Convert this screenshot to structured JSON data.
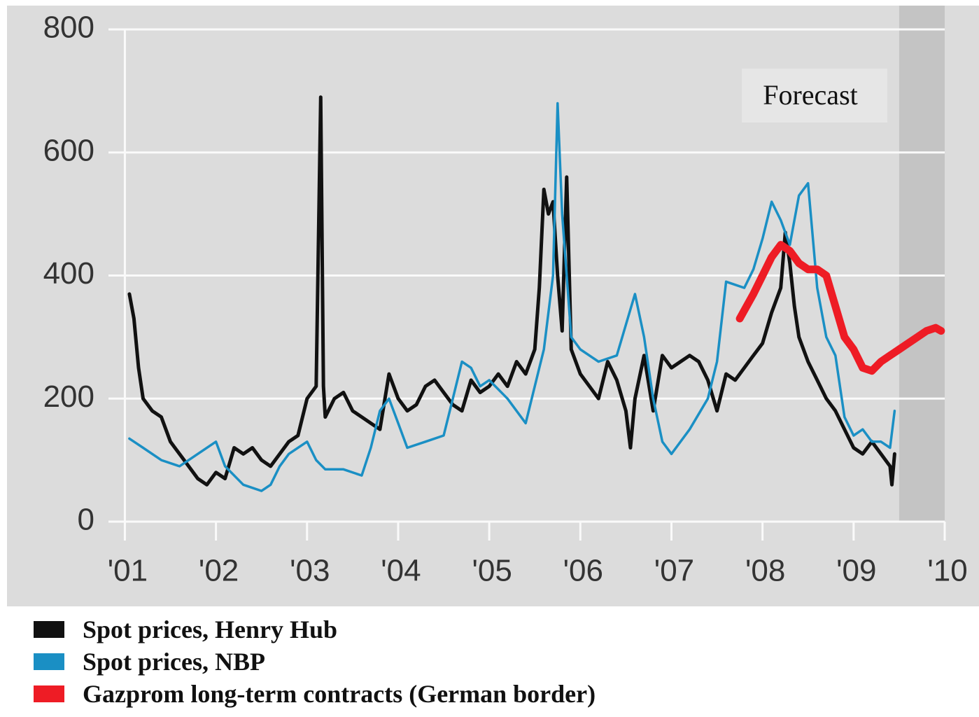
{
  "chart_data": {
    "type": "line",
    "annotation": "Forecast",
    "shaded_region": {
      "from": 2009.5,
      "to": 2010
    },
    "xlim": [
      2000.82,
      2010
    ],
    "xticks": [
      {
        "value": 2001,
        "label": "'01"
      },
      {
        "value": 2002,
        "label": "'02"
      },
      {
        "value": 2003,
        "label": "'03"
      },
      {
        "value": 2004,
        "label": "'04"
      },
      {
        "value": 2005,
        "label": "'05"
      },
      {
        "value": 2006,
        "label": "'06"
      },
      {
        "value": 2007,
        "label": "'07"
      },
      {
        "value": 2008,
        "label": "'08"
      },
      {
        "value": 2009,
        "label": "'09"
      },
      {
        "value": 2010,
        "label": "'10"
      }
    ],
    "ylim": [
      0,
      800
    ],
    "yticks": [
      0,
      200,
      400,
      600,
      800
    ],
    "grid": true,
    "series": [
      {
        "name": "Spot prices, Henry Hub",
        "color": "#111111",
        "x": [
          2001.05,
          2001.1,
          2001.15,
          2001.2,
          2001.3,
          2001.4,
          2001.5,
          2001.6,
          2001.7,
          2001.8,
          2001.9,
          2002.0,
          2002.1,
          2002.2,
          2002.3,
          2002.4,
          2002.5,
          2002.6,
          2002.7,
          2002.8,
          2002.9,
          2003.0,
          2003.1,
          2003.15,
          2003.18,
          2003.2,
          2003.3,
          2003.4,
          2003.5,
          2003.6,
          2003.7,
          2003.8,
          2003.9,
          2004.0,
          2004.1,
          2004.2,
          2004.3,
          2004.4,
          2004.5,
          2004.6,
          2004.7,
          2004.8,
          2004.9,
          2005.0,
          2005.1,
          2005.2,
          2005.3,
          2005.4,
          2005.5,
          2005.55,
          2005.6,
          2005.65,
          2005.7,
          2005.75,
          2005.8,
          2005.85,
          2005.9,
          2006.0,
          2006.1,
          2006.2,
          2006.3,
          2006.4,
          2006.5,
          2006.55,
          2006.6,
          2006.7,
          2006.8,
          2006.9,
          2007.0,
          2007.1,
          2007.2,
          2007.3,
          2007.4,
          2007.5,
          2007.6,
          2007.7,
          2007.8,
          2007.9,
          2008.0,
          2008.1,
          2008.2,
          2008.25,
          2008.3,
          2008.35,
          2008.4,
          2008.5,
          2008.6,
          2008.7,
          2008.8,
          2008.9,
          2009.0,
          2009.1,
          2009.2,
          2009.3,
          2009.4,
          2009.42,
          2009.45
        ],
        "values": [
          370,
          330,
          250,
          200,
          180,
          170,
          130,
          110,
          90,
          70,
          60,
          80,
          70,
          120,
          110,
          120,
          100,
          90,
          110,
          130,
          140,
          200,
          220,
          690,
          220,
          170,
          200,
          210,
          180,
          170,
          160,
          150,
          240,
          200,
          180,
          190,
          220,
          230,
          210,
          190,
          180,
          230,
          210,
          220,
          240,
          220,
          260,
          240,
          280,
          380,
          540,
          500,
          520,
          400,
          310,
          560,
          280,
          240,
          220,
          200,
          260,
          230,
          180,
          120,
          200,
          270,
          180,
          270,
          250,
          260,
          270,
          260,
          230,
          180,
          240,
          230,
          250,
          270,
          290,
          340,
          380,
          470,
          420,
          350,
          300,
          260,
          230,
          200,
          180,
          150,
          120,
          110,
          130,
          110,
          90,
          60,
          110
        ]
      },
      {
        "name": "Spot prices, NBP",
        "color": "#1a8fc4",
        "x": [
          2001.05,
          2001.2,
          2001.4,
          2001.6,
          2001.8,
          2002.0,
          2002.1,
          2002.3,
          2002.5,
          2002.6,
          2002.7,
          2002.8,
          2003.0,
          2003.1,
          2003.2,
          2003.4,
          2003.6,
          2003.7,
          2003.8,
          2003.9,
          2004.0,
          2004.1,
          2004.3,
          2004.5,
          2004.6,
          2004.7,
          2004.8,
          2004.9,
          2005.0,
          2005.2,
          2005.4,
          2005.5,
          2005.6,
          2005.7,
          2005.75,
          2005.8,
          2005.9,
          2006.0,
          2006.2,
          2006.4,
          2006.5,
          2006.6,
          2006.7,
          2006.8,
          2006.9,
          2007.0,
          2007.2,
          2007.4,
          2007.5,
          2007.6,
          2007.8,
          2007.9,
          2008.0,
          2008.1,
          2008.2,
          2008.3,
          2008.4,
          2008.5,
          2008.6,
          2008.7,
          2008.8,
          2008.9,
          2009.0,
          2009.1,
          2009.2,
          2009.3,
          2009.4,
          2009.45
        ],
        "values": [
          135,
          120,
          100,
          90,
          110,
          130,
          90,
          60,
          50,
          60,
          90,
          110,
          130,
          100,
          85,
          85,
          75,
          120,
          180,
          200,
          160,
          120,
          130,
          140,
          200,
          260,
          250,
          220,
          230,
          200,
          160,
          220,
          280,
          400,
          680,
          500,
          300,
          280,
          260,
          270,
          320,
          370,
          300,
          200,
          130,
          110,
          150,
          200,
          260,
          390,
          380,
          410,
          460,
          520,
          490,
          450,
          530,
          550,
          380,
          300,
          270,
          170,
          140,
          150,
          130,
          130,
          120,
          180
        ]
      },
      {
        "name": "Gazprom long-term contracts (German border)",
        "color": "#ee1c25",
        "x": [
          2007.75,
          2007.9,
          2008.0,
          2008.1,
          2008.2,
          2008.3,
          2008.4,
          2008.5,
          2008.6,
          2008.7,
          2008.8,
          2008.9,
          2009.0,
          2009.1,
          2009.2,
          2009.3,
          2009.4,
          2009.5,
          2009.6,
          2009.7,
          2009.8,
          2009.9,
          2009.96
        ],
        "values": [
          330,
          370,
          400,
          430,
          450,
          440,
          420,
          410,
          410,
          400,
          350,
          300,
          280,
          250,
          245,
          260,
          270,
          280,
          290,
          300,
          310,
          315,
          310
        ]
      }
    ]
  }
}
